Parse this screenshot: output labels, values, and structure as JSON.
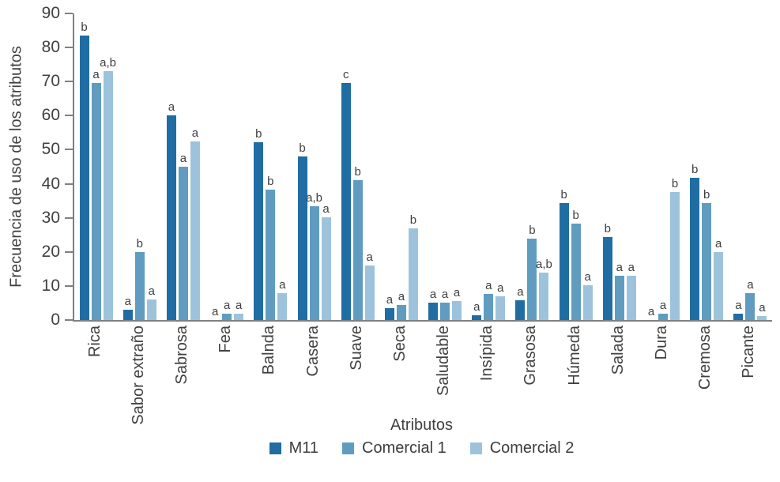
{
  "chart_data": {
    "type": "bar",
    "title": "",
    "xlabel": "Atributos",
    "ylabel": "Frecuencia de uso de los atributos",
    "ylim": [
      0,
      90
    ],
    "ytick_step": 10,
    "grid": false,
    "legend_position": "bottom",
    "categories": [
      "Rica",
      "Sabor extraño",
      "Sabrosa",
      "Fea",
      "Balnda",
      "Casera",
      "Suave",
      "Seca",
      "Saludable",
      "Insípida",
      "Grasosa",
      "Húmeda",
      "Salada",
      "Dura",
      "Cremosa",
      "Picante"
    ],
    "series": [
      {
        "name": "M11",
        "color": "#1f6da3",
        "values": [
          83.5,
          3,
          60,
          0,
          52.3,
          48,
          69.7,
          3.4,
          5.2,
          1.3,
          5.7,
          34.4,
          24.3,
          0,
          41.7,
          1.8
        ],
        "sig_letters": [
          "b",
          "a",
          "a",
          "a",
          "b",
          "b",
          "c",
          "a",
          "a",
          "a",
          "a",
          "b",
          "b",
          "a",
          "b",
          "a"
        ]
      },
      {
        "name": "Comercial 1",
        "color": "#5f9cc0",
        "values": [
          69.7,
          20,
          45,
          1.8,
          38.3,
          33.5,
          41,
          4.3,
          5.2,
          7.6,
          24,
          28.4,
          13,
          1.8,
          34.4,
          7.8
        ],
        "sig_letters": [
          "a",
          "b",
          "a",
          "a",
          "b",
          "a,b",
          "b",
          "a",
          "a",
          "a",
          "b",
          "b",
          "a",
          "a",
          "b",
          "a"
        ]
      },
      {
        "name": "Comercial 2",
        "color": "#9cc3db",
        "values": [
          73,
          6,
          52.5,
          1.8,
          8,
          30.2,
          16,
          27,
          5.5,
          7,
          14,
          10.3,
          13,
          37.5,
          20,
          1.1
        ],
        "sig_letters": [
          "a,b",
          "a",
          "a",
          "a",
          "a",
          "a",
          "a",
          "b",
          "a",
          "a",
          "a,b",
          "a",
          "a",
          "b",
          "a",
          "a"
        ]
      }
    ]
  },
  "colors": {
    "axis": "#808080",
    "text": "#404040",
    "background": "#ffffff"
  }
}
